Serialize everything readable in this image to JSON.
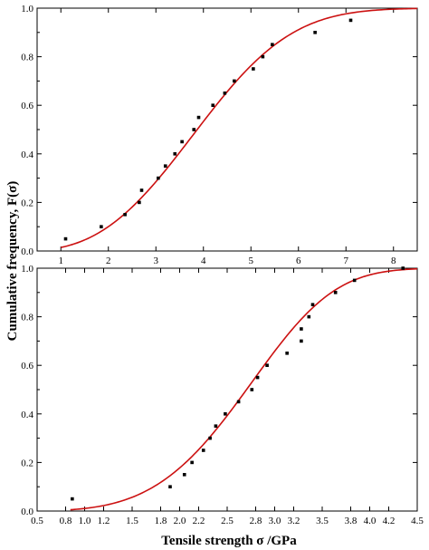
{
  "chart_data": [
    {
      "type": "scatter",
      "panel": "top",
      "xlabel": "",
      "ylabel": "Cumulative frequency, F(σ)",
      "xlim": [
        0.5,
        8.5
      ],
      "ylim": [
        0,
        1
      ],
      "x_ticks": [
        "1",
        "2",
        "3",
        "4",
        "5",
        "6",
        "7",
        "8"
      ],
      "y_ticks": [
        "0.0",
        "0.2",
        "0.4",
        "0.6",
        "0.8",
        "1.0"
      ],
      "grid": false,
      "point_color": "#000000",
      "curve_color": "#cc1111",
      "points": [
        {
          "x": 1.1,
          "y": 0.05
        },
        {
          "x": 1.85,
          "y": 0.1
        },
        {
          "x": 2.35,
          "y": 0.15
        },
        {
          "x": 2.65,
          "y": 0.2
        },
        {
          "x": 2.7,
          "y": 0.25
        },
        {
          "x": 3.05,
          "y": 0.3
        },
        {
          "x": 3.2,
          "y": 0.35
        },
        {
          "x": 3.4,
          "y": 0.4
        },
        {
          "x": 3.55,
          "y": 0.45
        },
        {
          "x": 3.8,
          "y": 0.5
        },
        {
          "x": 3.9,
          "y": 0.55
        },
        {
          "x": 4.2,
          "y": 0.6
        },
        {
          "x": 4.45,
          "y": 0.65
        },
        {
          "x": 4.65,
          "y": 0.7
        },
        {
          "x": 5.05,
          "y": 0.75
        },
        {
          "x": 5.25,
          "y": 0.8
        },
        {
          "x": 5.45,
          "y": 0.85
        },
        {
          "x": 6.35,
          "y": 0.9
        },
        {
          "x": 7.1,
          "y": 0.95
        }
      ],
      "fit": {
        "model": "weibull",
        "scale": 4.4,
        "shape": 2.85,
        "x_range": [
          1.0,
          8.5
        ]
      }
    },
    {
      "type": "scatter",
      "panel": "bottom",
      "xlabel": "Tensile strength σ /GPa",
      "ylabel": "Cumulative frequency, F(σ)",
      "xlim": [
        0.5,
        4.5
      ],
      "ylim": [
        0,
        1
      ],
      "x_ticks": [
        "0.5",
        "0.8",
        "1.0",
        "1.2",
        "1.5",
        "1.8",
        "2.0",
        "2.2",
        "2.5",
        "2.8",
        "3.0",
        "3.2",
        "3.5",
        "3.8",
        "4.0",
        "4.2",
        "4.5"
      ],
      "y_ticks": [
        "0.0",
        "0.2",
        "0.4",
        "0.6",
        "0.8",
        "1.0"
      ],
      "grid": false,
      "point_color": "#000000",
      "curve_color": "#cc1111",
      "points": [
        {
          "x": 0.87,
          "y": 0.05
        },
        {
          "x": 1.9,
          "y": 0.1
        },
        {
          "x": 2.05,
          "y": 0.15
        },
        {
          "x": 2.13,
          "y": 0.2
        },
        {
          "x": 2.25,
          "y": 0.25
        },
        {
          "x": 2.32,
          "y": 0.3
        },
        {
          "x": 2.38,
          "y": 0.35
        },
        {
          "x": 2.48,
          "y": 0.4
        },
        {
          "x": 2.62,
          "y": 0.45
        },
        {
          "x": 2.76,
          "y": 0.5
        },
        {
          "x": 2.82,
          "y": 0.55
        },
        {
          "x": 2.92,
          "y": 0.6
        },
        {
          "x": 3.13,
          "y": 0.65
        },
        {
          "x": 3.28,
          "y": 0.7
        },
        {
          "x": 3.28,
          "y": 0.75
        },
        {
          "x": 3.36,
          "y": 0.8
        },
        {
          "x": 3.4,
          "y": 0.85
        },
        {
          "x": 3.64,
          "y": 0.9
        },
        {
          "x": 3.84,
          "y": 0.95
        },
        {
          "x": 4.35,
          "y": 1.0
        }
      ],
      "fit": {
        "model": "weibull",
        "scale": 2.95,
        "shape": 4.2,
        "x_range": [
          0.85,
          4.5
        ]
      }
    }
  ]
}
